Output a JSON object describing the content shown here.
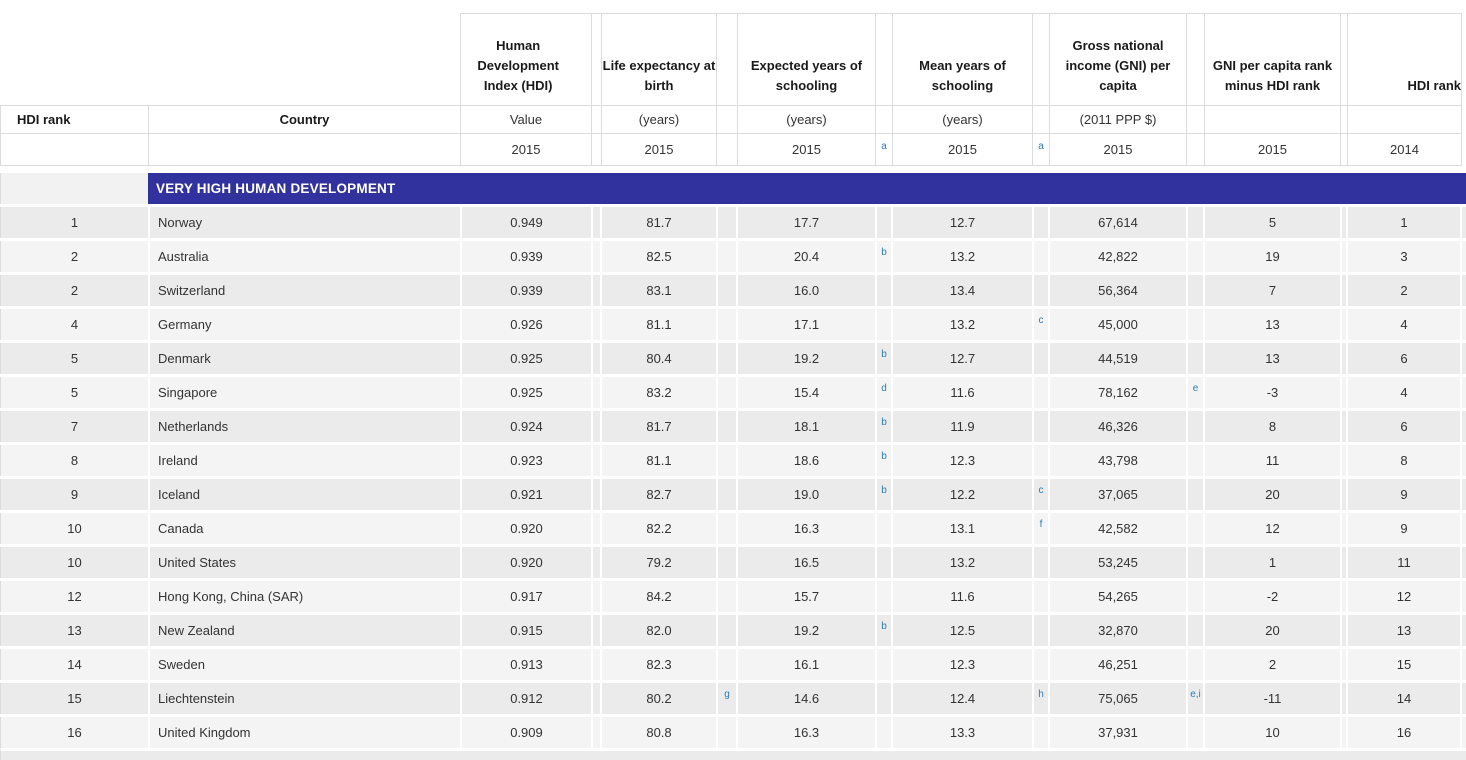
{
  "table": {
    "colors": {
      "band": "#32329e",
      "footnote_link": "#2e7bb4",
      "row_dark": "#ebebeb",
      "row_light": "#f4f4f4",
      "header_line": "#dcdcdc"
    },
    "header": {
      "rank": {
        "label": "HDI rank"
      },
      "country": {
        "label": "Country"
      },
      "hdi": {
        "title": "Human Development Index (HDI)",
        "unit": "Value",
        "year": "2015",
        "note": ""
      },
      "life": {
        "title": "Life expectancy at birth",
        "unit": "(years)",
        "year": "2015",
        "note": ""
      },
      "expected": {
        "title": "Expected years of schooling",
        "unit": "(years)",
        "year": "2015",
        "note": "a"
      },
      "mean": {
        "title": "Mean years of schooling",
        "unit": "(years)",
        "year": "2015",
        "note": "a"
      },
      "gni": {
        "title": "Gross national income (GNI) per capita",
        "unit": "(2011 PPP $)",
        "year": "2015",
        "note": ""
      },
      "diff": {
        "title": "GNI per capita rank minus HDI rank",
        "unit": "",
        "year": "2015",
        "note": ""
      },
      "rank2014": {
        "title": "HDI rank",
        "unit": "",
        "year": "2014",
        "note": ""
      }
    },
    "group_header": "VERY HIGH HUMAN DEVELOPMENT",
    "rows": [
      {
        "rank": "1",
        "country": "Norway",
        "hdi": "0.949",
        "life": "81.7",
        "life_note": "",
        "expected": "17.7",
        "expected_note": "",
        "mean": "12.7",
        "mean_note": "",
        "gni": "67,614",
        "gni_note": "",
        "diff": "5",
        "rank2014": "1"
      },
      {
        "rank": "2",
        "country": "Australia",
        "hdi": "0.939",
        "life": "82.5",
        "life_note": "",
        "expected": "20.4",
        "expected_note": "b",
        "mean": "13.2",
        "mean_note": "",
        "gni": "42,822",
        "gni_note": "",
        "diff": "19",
        "rank2014": "3"
      },
      {
        "rank": "2",
        "country": "Switzerland",
        "hdi": "0.939",
        "life": "83.1",
        "life_note": "",
        "expected": "16.0",
        "expected_note": "",
        "mean": "13.4",
        "mean_note": "",
        "gni": "56,364",
        "gni_note": "",
        "diff": "7",
        "rank2014": "2"
      },
      {
        "rank": "4",
        "country": "Germany",
        "hdi": "0.926",
        "life": "81.1",
        "life_note": "",
        "expected": "17.1",
        "expected_note": "",
        "mean": "13.2",
        "mean_note": "c",
        "gni": "45,000",
        "gni_note": "",
        "diff": "13",
        "rank2014": "4"
      },
      {
        "rank": "5",
        "country": "Denmark",
        "hdi": "0.925",
        "life": "80.4",
        "life_note": "",
        "expected": "19.2",
        "expected_note": "b",
        "mean": "12.7",
        "mean_note": "",
        "gni": "44,519",
        "gni_note": "",
        "diff": "13",
        "rank2014": "6"
      },
      {
        "rank": "5",
        "country": "Singapore",
        "hdi": "0.925",
        "life": "83.2",
        "life_note": "",
        "expected": "15.4",
        "expected_note": "d",
        "mean": "11.6",
        "mean_note": "",
        "gni": "78,162",
        "gni_note": "e",
        "diff": "-3",
        "rank2014": "4"
      },
      {
        "rank": "7",
        "country": "Netherlands",
        "hdi": "0.924",
        "life": "81.7",
        "life_note": "",
        "expected": "18.1",
        "expected_note": "b",
        "mean": "11.9",
        "mean_note": "",
        "gni": "46,326",
        "gni_note": "",
        "diff": "8",
        "rank2014": "6"
      },
      {
        "rank": "8",
        "country": "Ireland",
        "hdi": "0.923",
        "life": "81.1",
        "life_note": "",
        "expected": "18.6",
        "expected_note": "b",
        "mean": "12.3",
        "mean_note": "",
        "gni": "43,798",
        "gni_note": "",
        "diff": "11",
        "rank2014": "8"
      },
      {
        "rank": "9",
        "country": "Iceland",
        "hdi": "0.921",
        "life": "82.7",
        "life_note": "",
        "expected": "19.0",
        "expected_note": "b",
        "mean": "12.2",
        "mean_note": "c",
        "gni": "37,065",
        "gni_note": "",
        "diff": "20",
        "rank2014": "9"
      },
      {
        "rank": "10",
        "country": "Canada",
        "hdi": "0.920",
        "life": "82.2",
        "life_note": "",
        "expected": "16.3",
        "expected_note": "",
        "mean": "13.1",
        "mean_note": "f",
        "gni": "42,582",
        "gni_note": "",
        "diff": "12",
        "rank2014": "9"
      },
      {
        "rank": "10",
        "country": "United States",
        "hdi": "0.920",
        "life": "79.2",
        "life_note": "",
        "expected": "16.5",
        "expected_note": "",
        "mean": "13.2",
        "mean_note": "",
        "gni": "53,245",
        "gni_note": "",
        "diff": "1",
        "rank2014": "11"
      },
      {
        "rank": "12",
        "country": "Hong Kong, China (SAR)",
        "hdi": "0.917",
        "life": "84.2",
        "life_note": "",
        "expected": "15.7",
        "expected_note": "",
        "mean": "11.6",
        "mean_note": "",
        "gni": "54,265",
        "gni_note": "",
        "diff": "-2",
        "rank2014": "12"
      },
      {
        "rank": "13",
        "country": "New Zealand",
        "hdi": "0.915",
        "life": "82.0",
        "life_note": "",
        "expected": "19.2",
        "expected_note": "b",
        "mean": "12.5",
        "mean_note": "",
        "gni": "32,870",
        "gni_note": "",
        "diff": "20",
        "rank2014": "13"
      },
      {
        "rank": "14",
        "country": "Sweden",
        "hdi": "0.913",
        "life": "82.3",
        "life_note": "",
        "expected": "16.1",
        "expected_note": "",
        "mean": "12.3",
        "mean_note": "",
        "gni": "46,251",
        "gni_note": "",
        "diff": "2",
        "rank2014": "15"
      },
      {
        "rank": "15",
        "country": "Liechtenstein",
        "hdi": "0.912",
        "life": "80.2",
        "life_note": "g",
        "expected": "14.6",
        "expected_note": "",
        "mean": "12.4",
        "mean_note": "h",
        "gni": "75,065",
        "gni_note": "e,i",
        "diff": "-11",
        "rank2014": "14"
      },
      {
        "rank": "16",
        "country": "United Kingdom",
        "hdi": "0.909",
        "life": "80.8",
        "life_note": "",
        "expected": "16.3",
        "expected_note": "",
        "mean": "13.3",
        "mean_note": "",
        "gni": "37,931",
        "gni_note": "",
        "diff": "10",
        "rank2014": "16"
      }
    ]
  }
}
